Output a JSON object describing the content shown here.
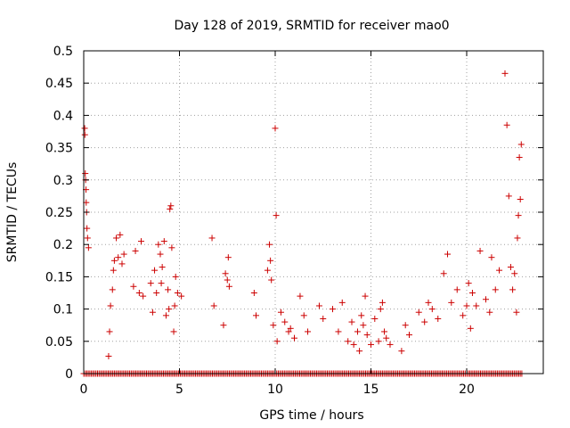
{
  "chart_data": {
    "type": "scatter",
    "title": "Day 128 of 2019, SRMTID for receiver mao0",
    "xlabel": "GPS time / hours",
    "ylabel": "SRMTID / TECUs",
    "xlim": [
      0,
      24
    ],
    "ylim": [
      0,
      0.5
    ],
    "xticks": [
      0,
      5,
      10,
      15,
      20
    ],
    "xtick_labels": [
      "0",
      "5",
      "10",
      "15",
      "20"
    ],
    "yticks": [
      0,
      0.05,
      0.1,
      0.15,
      0.2,
      0.25,
      0.3,
      0.35,
      0.4,
      0.45,
      0.5
    ],
    "ytick_labels": [
      "0",
      "0.05",
      "0.1",
      "0.15",
      "0.2",
      "0.25",
      "0.3",
      "0.35",
      "0.4",
      "0.45",
      "0.5"
    ],
    "grid": true,
    "marker": "+",
    "color": "#cc0000",
    "baseline_zero_x_range": [
      0,
      22.9
    ],
    "series": [
      {
        "name": "SRMTID",
        "x": [
          0.05,
          0.06,
          0.08,
          0.1,
          0.12,
          0.13,
          0.15,
          0.17,
          0.2,
          0.25,
          1.3,
          1.35,
          1.4,
          1.5,
          1.55,
          1.6,
          1.7,
          1.8,
          1.9,
          2.0,
          2.1,
          2.6,
          2.7,
          2.9,
          3.0,
          3.1,
          3.5,
          3.6,
          3.7,
          3.8,
          3.9,
          4.0,
          4.05,
          4.1,
          4.2,
          4.3,
          4.4,
          4.45,
          4.5,
          4.55,
          4.6,
          4.7,
          4.75,
          4.8,
          4.9,
          5.1,
          6.7,
          6.8,
          7.3,
          7.4,
          7.5,
          7.55,
          7.6,
          8.9,
          9.0,
          9.6,
          9.7,
          9.75,
          9.8,
          9.9,
          10.0,
          10.05,
          10.1,
          10.3,
          10.5,
          10.7,
          10.8,
          11.0,
          11.3,
          11.5,
          11.7,
          12.3,
          12.5,
          13.0,
          13.3,
          13.5,
          13.8,
          14.0,
          14.1,
          14.3,
          14.4,
          14.5,
          14.6,
          14.7,
          14.8,
          15.0,
          15.2,
          15.4,
          15.5,
          15.6,
          15.7,
          15.8,
          16.0,
          16.6,
          16.8,
          17.0,
          17.5,
          17.8,
          18.0,
          18.2,
          18.5,
          18.8,
          19.0,
          19.2,
          19.5,
          19.8,
          20.0,
          20.1,
          20.2,
          20.3,
          20.5,
          20.7,
          21.0,
          21.2,
          21.3,
          21.5,
          21.7,
          22.0,
          22.1,
          22.2,
          22.3,
          22.4,
          22.5,
          22.6,
          22.65,
          22.7,
          22.75,
          22.8,
          22.85
        ],
        "y": [
          0.38,
          0.37,
          0.31,
          0.3,
          0.285,
          0.265,
          0.25,
          0.225,
          0.21,
          0.195,
          0.027,
          0.065,
          0.105,
          0.13,
          0.16,
          0.175,
          0.21,
          0.18,
          0.215,
          0.17,
          0.185,
          0.135,
          0.19,
          0.125,
          0.205,
          0.12,
          0.14,
          0.095,
          0.16,
          0.125,
          0.2,
          0.185,
          0.14,
          0.165,
          0.205,
          0.09,
          0.13,
          0.1,
          0.255,
          0.26,
          0.195,
          0.065,
          0.105,
          0.15,
          0.125,
          0.12,
          0.21,
          0.105,
          0.075,
          0.155,
          0.145,
          0.18,
          0.135,
          0.125,
          0.09,
          0.16,
          0.2,
          0.175,
          0.145,
          0.075,
          0.38,
          0.245,
          0.05,
          0.095,
          0.08,
          0.065,
          0.07,
          0.055,
          0.12,
          0.09,
          0.065,
          0.105,
          0.085,
          0.1,
          0.065,
          0.11,
          0.05,
          0.08,
          0.045,
          0.065,
          0.035,
          0.09,
          0.075,
          0.12,
          0.06,
          0.045,
          0.085,
          0.05,
          0.1,
          0.11,
          0.065,
          0.055,
          0.045,
          0.035,
          0.075,
          0.06,
          0.095,
          0.08,
          0.11,
          0.1,
          0.085,
          0.155,
          0.185,
          0.11,
          0.13,
          0.09,
          0.105,
          0.14,
          0.07,
          0.125,
          0.105,
          0.19,
          0.115,
          0.095,
          0.18,
          0.13,
          0.16,
          0.465,
          0.385,
          0.275,
          0.165,
          0.13,
          0.155,
          0.095,
          0.21,
          0.245,
          0.335,
          0.27,
          0.355
        ]
      }
    ]
  }
}
